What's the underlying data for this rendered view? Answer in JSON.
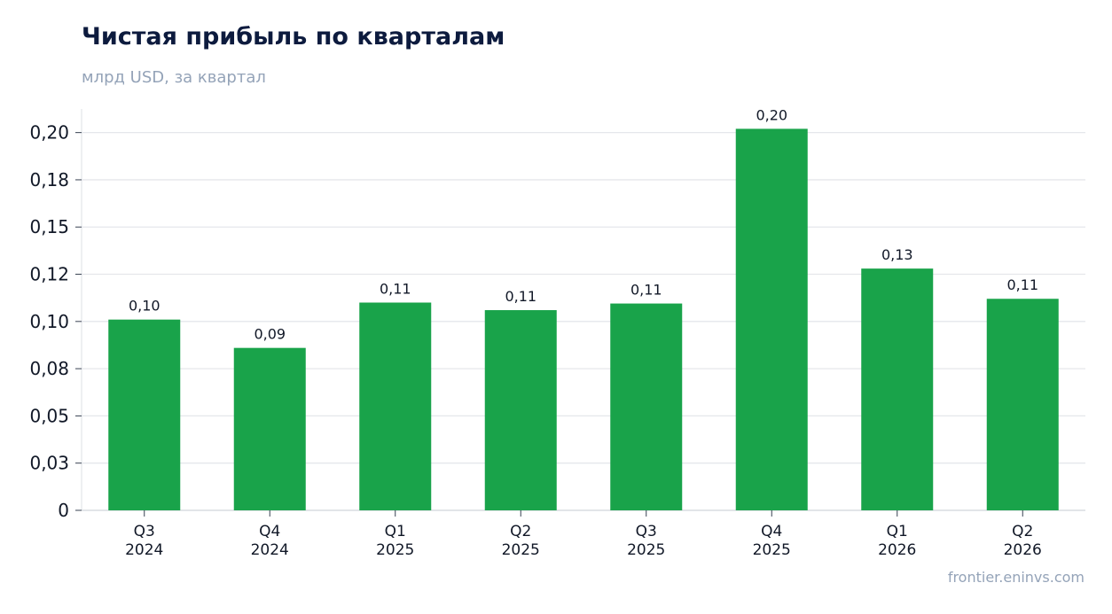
{
  "header": {
    "title": "Чистая прибыль по кварталам",
    "subtitle": "млрд USD, за квартал"
  },
  "footer": {
    "source": "frontier.eninvs.com"
  },
  "colors": {
    "bar": "#19a34a",
    "title": "#0d1b3e",
    "muted": "#94a3b8",
    "grid": "#e5e7eb",
    "text": "#111827"
  },
  "chart_data": {
    "type": "bar",
    "title": "Чистая прибыль по кварталам",
    "subtitle": "млрд USD, за квартал",
    "xlabel": "",
    "ylabel": "",
    "categories": [
      [
        "Q3",
        "2024"
      ],
      [
        "Q4",
        "2024"
      ],
      [
        "Q1",
        "2025"
      ],
      [
        "Q2",
        "2025"
      ],
      [
        "Q3",
        "2025"
      ],
      [
        "Q4",
        "2025"
      ],
      [
        "Q1",
        "2026"
      ],
      [
        "Q2",
        "2026"
      ]
    ],
    "values": [
      0.101,
      0.086,
      0.11,
      0.106,
      0.1095,
      0.202,
      0.128,
      0.112
    ],
    "data_labels": [
      "0,10",
      "0,09",
      "0,11",
      "0,11",
      "0,11",
      "0,20",
      "0,13",
      "0,11"
    ],
    "yticks": [
      0,
      0.025,
      0.05,
      0.075,
      0.1,
      0.125,
      0.15,
      0.175,
      0.2
    ],
    "ytick_labels": [
      "0",
      "0,03",
      "0,05",
      "0,08",
      "0,10",
      "0,12",
      "0,15",
      "0,18",
      "0,20"
    ],
    "ylim": [
      0,
      0.2125
    ],
    "grid": "horizontal",
    "legend": "none"
  }
}
